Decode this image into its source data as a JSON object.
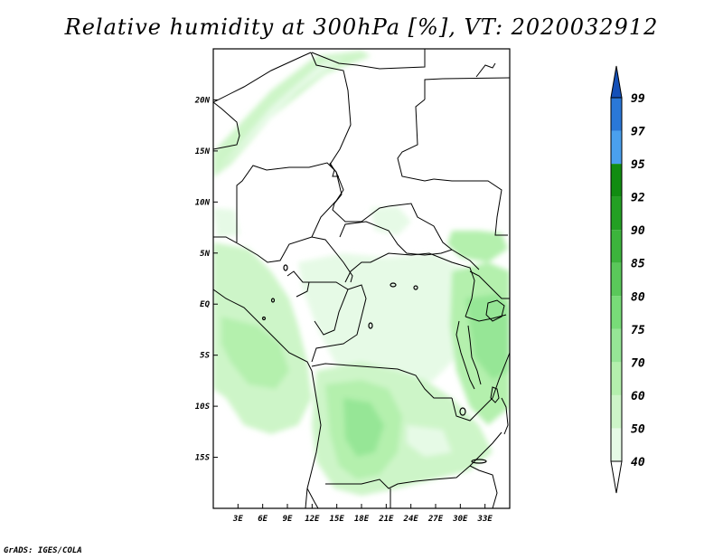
{
  "title": "Relative humidity at 300hPa [%], VT: 2020032912",
  "footer": "GrADS: IGES/COLA",
  "map": {
    "variable": "Relative humidity",
    "level": "300hPa",
    "units": "%",
    "valid_time": "2020032912",
    "lon_range_deg": [
      0,
      36
    ],
    "lat_range_deg": [
      -20,
      25
    ],
    "lat_ticks": [
      {
        "value": 20,
        "label": "20N"
      },
      {
        "value": 15,
        "label": "15N"
      },
      {
        "value": 10,
        "label": "10N"
      },
      {
        "value": 5,
        "label": "5N"
      },
      {
        "value": 0,
        "label": "EQ"
      },
      {
        "value": -5,
        "label": "5S"
      },
      {
        "value": -10,
        "label": "10S"
      },
      {
        "value": -15,
        "label": "15S"
      }
    ],
    "lon_ticks": [
      {
        "value": 3,
        "label": "3E"
      },
      {
        "value": 6,
        "label": "6E"
      },
      {
        "value": 9,
        "label": "9E"
      },
      {
        "value": 12,
        "label": "12E"
      },
      {
        "value": 15,
        "label": "15E"
      },
      {
        "value": 18,
        "label": "18E"
      },
      {
        "value": 21,
        "label": "21E"
      },
      {
        "value": 24,
        "label": "24E"
      },
      {
        "value": 27,
        "label": "27E"
      },
      {
        "value": 30,
        "label": "30E"
      },
      {
        "value": 33,
        "label": "33E"
      }
    ]
  },
  "colorbar": {
    "levels": [
      "40",
      "50",
      "60",
      "70",
      "75",
      "80",
      "85",
      "90",
      "92",
      "95",
      "97",
      "99"
    ],
    "colors": [
      "#ffffff",
      "#e6fae6",
      "#cdf5c8",
      "#b4f0ad",
      "#96e696",
      "#78dc78",
      "#5ac85a",
      "#3cb43c",
      "#23a023",
      "#118c11",
      "#4aa0ee",
      "#2a78d8",
      "#1450b8"
    ]
  }
}
